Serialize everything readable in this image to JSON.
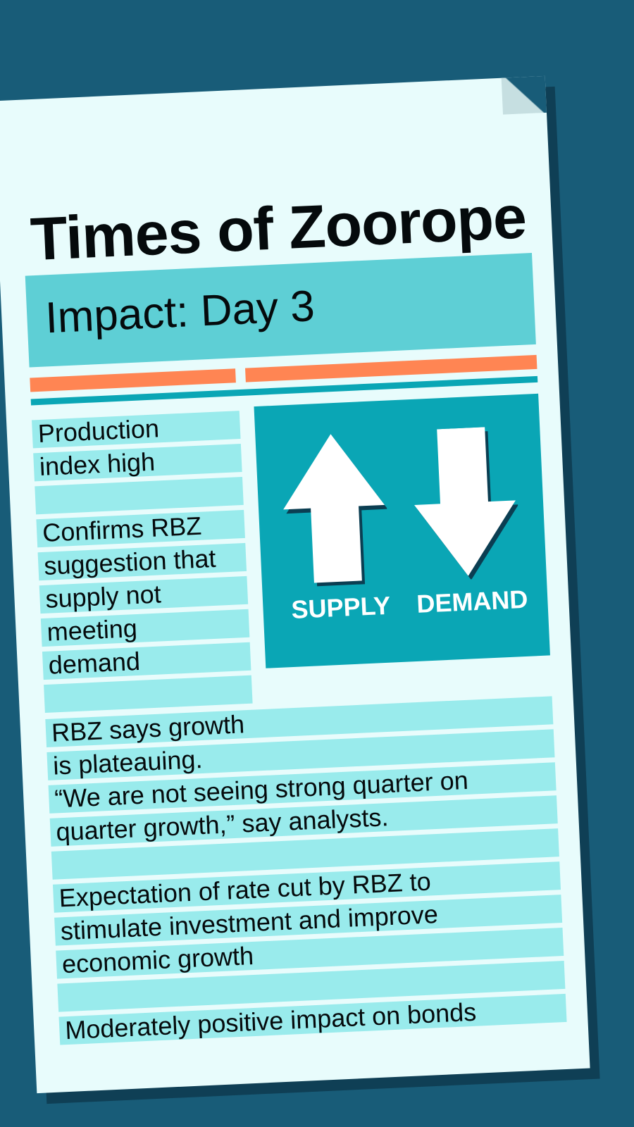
{
  "newspaper": {
    "masthead": "Times of Zoorope",
    "headline": "Impact: Day 3"
  },
  "sidebar_text": [
    "Production",
    "index high",
    "",
    "Confirms RBZ",
    "suggestion that",
    "supply not",
    "meeting",
    "demand",
    ""
  ],
  "body_text": [
    "RBZ says growth",
    "is plateauing.",
    "“We are not seeing strong quarter on",
    "quarter growth,” say analysts.",
    "",
    "Expectation of rate cut by RBZ to",
    "stimulate investment and improve",
    "economic growth",
    "",
    "Moderately positive impact on bonds"
  ],
  "graphic": {
    "supply_label": "SUPPLY",
    "demand_label": "DEMAND",
    "supply_icon": "arrow-up-icon",
    "demand_icon": "arrow-down-icon"
  },
  "colors": {
    "background": "#185c78",
    "paper": "#e8fcfc",
    "banner": "#5ecfd5",
    "accent_orange": "#ff8553",
    "teal": "#0aa6b5",
    "text_highlight": "#99ebec"
  }
}
